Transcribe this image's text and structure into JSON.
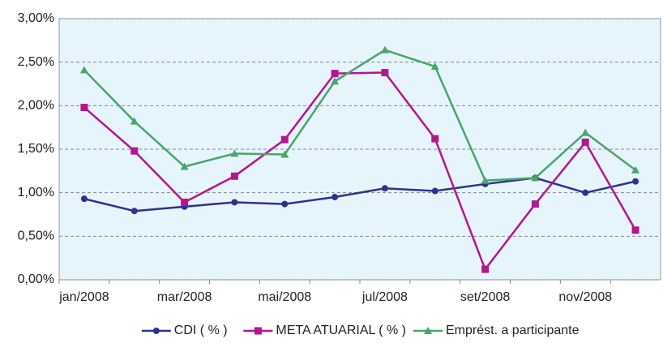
{
  "chart_data": {
    "type": "line",
    "categories": [
      "jan/2008",
      null,
      "mar/2008",
      null,
      "mai/2008",
      null,
      "jul/2008",
      null,
      "set/2008",
      null,
      "nov/2008",
      null
    ],
    "series": [
      {
        "name": "CDI ( % )",
        "color": "#2e3192",
        "marker": "circle",
        "values": [
          0.93,
          0.79,
          0.84,
          0.89,
          0.87,
          0.95,
          1.05,
          1.02,
          1.1,
          1.17,
          1.0,
          1.13
        ]
      },
      {
        "name": "META ATUARIAL ( % )",
        "color": "#b5168f",
        "marker": "square",
        "values": [
          1.98,
          1.48,
          0.89,
          1.19,
          1.61,
          2.37,
          2.38,
          1.62,
          0.12,
          0.87,
          1.58,
          0.57
        ]
      },
      {
        "name": "Emprést. a participante",
        "color": "#4aa56a",
        "marker": "triangle",
        "values": [
          2.41,
          1.82,
          1.3,
          1.45,
          1.44,
          2.28,
          2.64,
          2.45,
          1.14,
          1.17,
          1.69,
          1.26
        ]
      }
    ],
    "ylim": [
      0,
      3
    ],
    "yticks": [
      {
        "value": 0,
        "label": "0,00%"
      },
      {
        "value": 0.5,
        "label": "0,50%"
      },
      {
        "value": 1,
        "label": "1,00%"
      },
      {
        "value": 1.5,
        "label": "1,50%"
      },
      {
        "value": 2,
        "label": "2,00%"
      },
      {
        "value": 2.5,
        "label": "2,50%"
      },
      {
        "value": 3,
        "label": "3,00%"
      }
    ],
    "grid": true,
    "legend": "bottom"
  }
}
